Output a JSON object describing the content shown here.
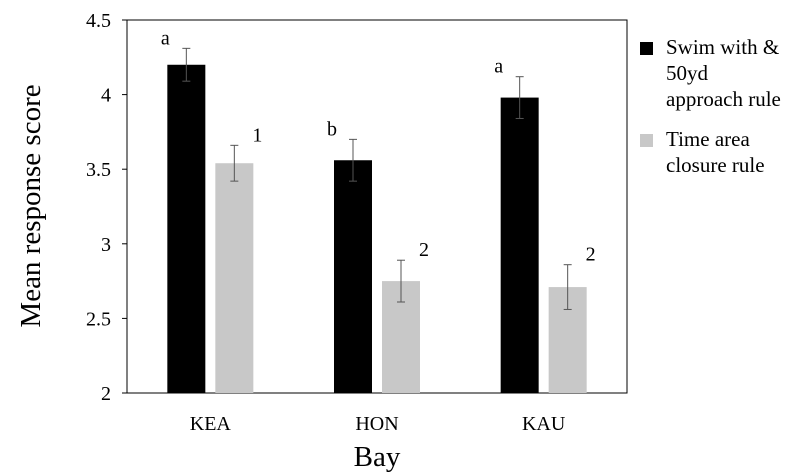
{
  "chart_data": {
    "type": "bar",
    "categories": [
      "KEA",
      "HON",
      "KAU"
    ],
    "series": [
      {
        "name": "Swim with & 50yd approach rule",
        "values": [
          4.2,
          3.56,
          3.98
        ],
        "errors": [
          0.11,
          0.14,
          0.14
        ],
        "labels": [
          "a",
          "b",
          "a"
        ],
        "color": "#000000"
      },
      {
        "name": "Time area closure rule",
        "values": [
          3.54,
          2.75,
          2.71
        ],
        "errors": [
          0.12,
          0.14,
          0.15
        ],
        "labels": [
          "1",
          "2",
          "2"
        ],
        "color": "#c8c8c8"
      }
    ],
    "xlabel": "Bay",
    "ylabel": "Mean response score",
    "ylim": [
      2,
      4.5
    ],
    "yticks": [
      "2",
      "2.5",
      "3",
      "3.5",
      "4",
      "4.5"
    ],
    "grid": false,
    "legend_position": "right"
  }
}
